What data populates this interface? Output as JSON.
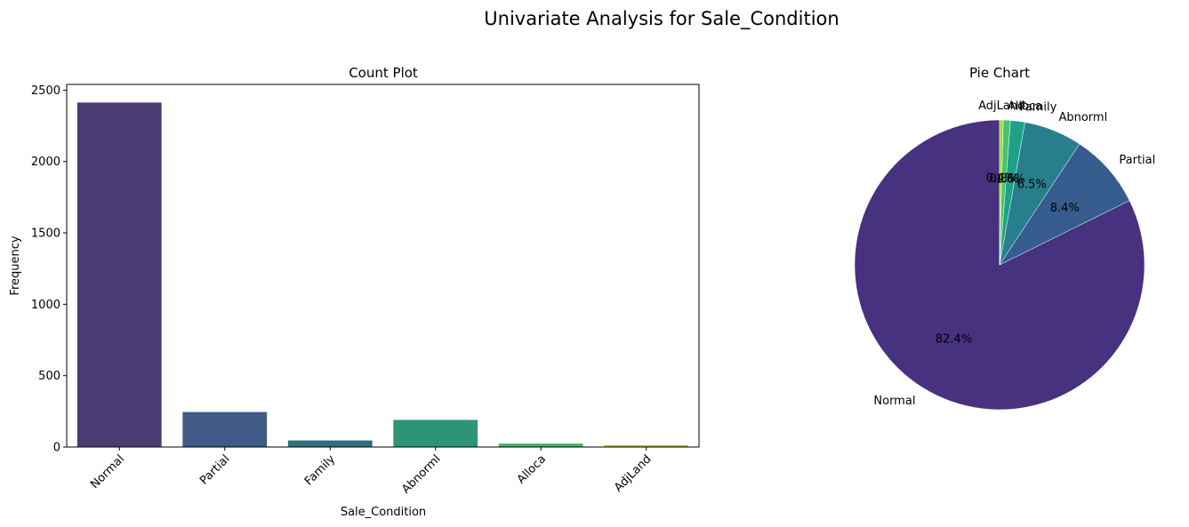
{
  "figure": {
    "suptitle": "Univariate Analysis for Sale_Condition"
  },
  "chart_data": [
    {
      "type": "bar",
      "title": "Count Plot",
      "xlabel": "Sale_Condition",
      "ylabel": "Frequency",
      "categories": [
        "Normal",
        "Partial",
        "Family",
        "Abnorml",
        "Alloca",
        "AdjLand"
      ],
      "values": [
        2413,
        245,
        46,
        190,
        24,
        12
      ],
      "ylim": [
        0,
        2540
      ],
      "yticks": [
        0,
        500,
        1000,
        1500,
        2000,
        2500
      ],
      "xtick_rotation": 45,
      "colors": [
        "#4a3b72",
        "#3f5a86",
        "#2e6f7d",
        "#2e9478",
        "#44b266",
        "#9ac93a"
      ],
      "grid": false
    },
    {
      "type": "pie",
      "title": "Pie Chart",
      "labels": [
        "Normal",
        "Partial",
        "Abnorml",
        "Family",
        "Alloca",
        "AdjLand"
      ],
      "values": [
        82.4,
        8.4,
        6.5,
        1.6,
        0.8,
        0.4
      ],
      "autopct": [
        "82.4%",
        "8.4%",
        "6.5%",
        "1.6%",
        "0.8%",
        "0.4%"
      ],
      "start_angle": 90,
      "direction": "counterclockwise",
      "colors": [
        "#46327e",
        "#365c8d",
        "#277f8e",
        "#1fa187",
        "#4ac16d",
        "#a0da39"
      ]
    }
  ]
}
